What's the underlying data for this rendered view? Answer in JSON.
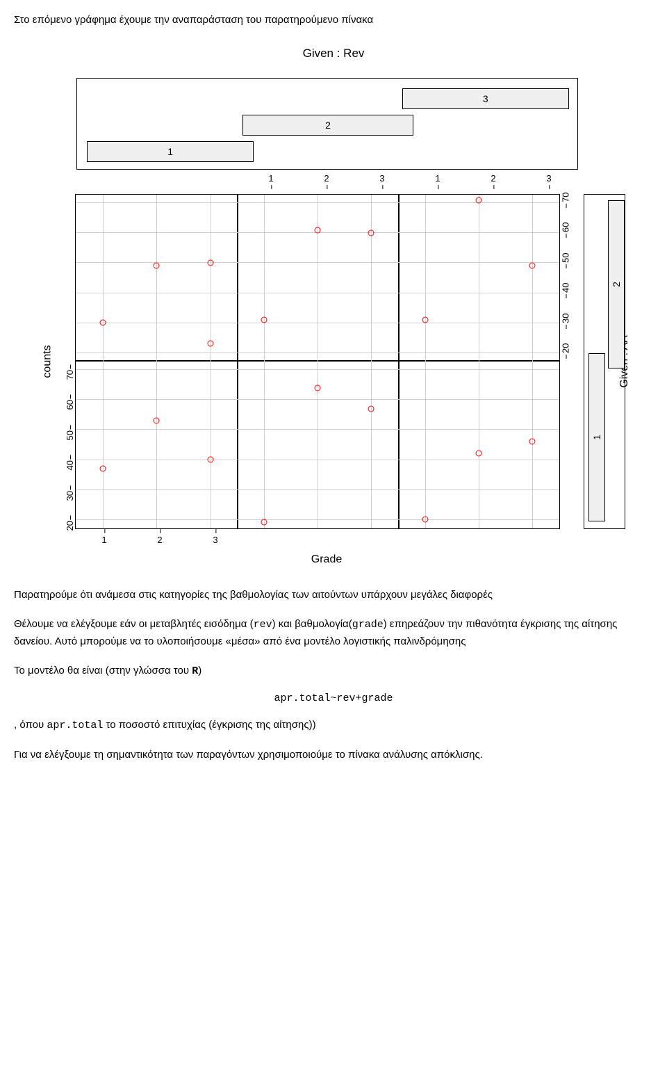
{
  "intro": "Στο επόμενο γράφημα έχουμε την αναπαράσταση του παρατηρούμενο πίνακα",
  "chart": {
    "title": "Given : Rev",
    "xlabel": "Grade",
    "ylabel": "counts",
    "aalabel": "Given : AA",
    "shingle_rev": {
      "bg": "#f0f0f0",
      "boxes": [
        {
          "label": "1",
          "left_pct": 2,
          "width_pct": 33,
          "row": 0
        },
        {
          "label": "2",
          "left_pct": 33,
          "width_pct": 34,
          "row": 1
        },
        {
          "label": "3",
          "left_pct": 65,
          "width_pct": 33,
          "row": 2
        }
      ]
    },
    "shingle_aa": {
      "bg": "#f0f0f0",
      "boxes": [
        {
          "label": "1",
          "bottom_pct": 2,
          "height_pct": 50,
          "col": 0
        },
        {
          "label": "2",
          "bottom_pct": 48,
          "height_pct": 50,
          "col": 1
        }
      ]
    },
    "panels": {
      "cols": 3,
      "rows": 2,
      "col_width_pct": 33.333,
      "row_height_pct": 50
    },
    "x_ticks": {
      "values": [
        "1",
        "2",
        "3"
      ],
      "positions": [
        16.67,
        50,
        83.33
      ]
    },
    "y_ticks": {
      "values": [
        "20",
        "30",
        "40",
        "50",
        "60",
        "70"
      ],
      "positions_from_bottom_pct": [
        5,
        23,
        41,
        59,
        77,
        95
      ]
    },
    "top_axis_cols": [
      1,
      2
    ],
    "bottom_axis_col": 0,
    "left_axis_row": 0,
    "right_axis_row": 1,
    "grid_v_per_panel": [
      16.67,
      50,
      83.33
    ],
    "grid_h_pct": [
      5,
      23,
      41,
      59,
      77,
      95
    ],
    "points": [
      {
        "panel_col": 0,
        "panel_row": 0,
        "x": 1,
        "y": 35
      },
      {
        "panel_col": 0,
        "panel_row": 0,
        "x": 2,
        "y": 51
      },
      {
        "panel_col": 0,
        "panel_row": 0,
        "x": 3,
        "y": 38
      },
      {
        "panel_col": 1,
        "panel_row": 0,
        "x": 1,
        "y": 17
      },
      {
        "panel_col": 1,
        "panel_row": 0,
        "x": 2,
        "y": 62
      },
      {
        "panel_col": 1,
        "panel_row": 0,
        "x": 3,
        "y": 55
      },
      {
        "panel_col": 2,
        "panel_row": 0,
        "x": 1,
        "y": 18
      },
      {
        "panel_col": 2,
        "panel_row": 0,
        "x": 2,
        "y": 40
      },
      {
        "panel_col": 2,
        "panel_row": 0,
        "x": 3,
        "y": 44
      },
      {
        "panel_col": 0,
        "panel_row": 1,
        "x": 1,
        "y": 28
      },
      {
        "panel_col": 0,
        "panel_row": 1,
        "x": 2,
        "y": 47
      },
      {
        "panel_col": 0,
        "panel_row": 1,
        "x": 3,
        "y": 48
      },
      {
        "panel_col": 0,
        "panel_row": 1,
        "x": 3,
        "y": 21
      },
      {
        "panel_col": 1,
        "panel_row": 1,
        "x": 1,
        "y": 29
      },
      {
        "panel_col": 1,
        "panel_row": 1,
        "x": 2,
        "y": 59
      },
      {
        "panel_col": 1,
        "panel_row": 1,
        "x": 3,
        "y": 58
      },
      {
        "panel_col": 2,
        "panel_row": 1,
        "x": 1,
        "y": 29
      },
      {
        "panel_col": 2,
        "panel_row": 1,
        "x": 2,
        "y": 69
      },
      {
        "panel_col": 2,
        "panel_row": 1,
        "x": 3,
        "y": 47
      }
    ],
    "y_domain": [
      17,
      73
    ],
    "point_color": "#ff0000",
    "grid_color": "#d0d0d0",
    "background_color": "#ffffff"
  },
  "para1": "Παρατηρούμε ότι ανάμεσα στις κατηγορίες της βαθμολογίας των αιτούντων υπάρχουν μεγάλες διαφορές",
  "para2_pre": "Θέλουμε να ελέγξουμε εάν οι μεταβλητές εισόδημα (",
  "para2_rev": "rev",
  "para2_mid": ") και βαθμολογία(",
  "para2_grade": "grade",
  "para2_end": ") επηρεάζουν την πιθανότητα έγκρισης της αίτησης δανείου. Αυτό μπορούμε να το υλοποιήσουμε «μέσα» από ένα μοντέλο λογιστικής παλινδρόμησης",
  "para3_pre": "Το μοντέλο θα είναι (στην γλώσσα του ",
  "para3_r": "R",
  "para3_end": ")",
  "formula": "apr.total~rev+grade",
  "para4_pre": ", όπου ",
  "para4_code": "apr.total",
  "para4_end": " το ποσοστό επιτυχίας (έγκρισης της αίτησης))",
  "para5": "Για να ελέγξουμε τη σημαντικότητα των παραγόντων χρησιμοποιούμε το πίνακα ανάλυσης απόκλισης."
}
